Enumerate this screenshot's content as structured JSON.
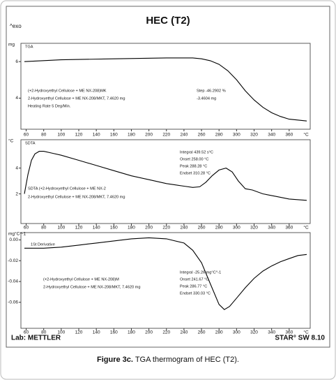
{
  "title": "HEC (T2)",
  "exo_label": "^exo",
  "lab": "Lab: METTLER",
  "software": "STAR° SW 8.10",
  "caption": {
    "label": "Figure 3c.",
    "text": "TGA thermogram of HEC (T2)."
  },
  "chart_data": [
    {
      "type": "line",
      "label": "TGA",
      "y_unit": "mg",
      "x_unit": "°C",
      "color": "#000000",
      "xlim": [
        54,
        384
      ],
      "xticks": [
        60,
        80,
        100,
        120,
        140,
        160,
        180,
        200,
        220,
        240,
        260,
        280,
        300,
        320,
        340,
        360
      ],
      "ylim": [
        2.3,
        7
      ],
      "yticks": [
        6,
        4
      ],
      "x": [
        58,
        100,
        160,
        220,
        250,
        260,
        270,
        280,
        290,
        300,
        310,
        320,
        330,
        340,
        350,
        360,
        380
      ],
      "values": [
        6.0,
        6.1,
        6.15,
        6.2,
        6.2,
        6.15,
        6.05,
        5.85,
        5.5,
        5.0,
        4.4,
        3.9,
        3.5,
        3.2,
        3.0,
        2.85,
        2.75
      ],
      "annotations": [
        "(+2-Hydroxyethyl Cellulose + ME NX-208)MK",
        "2-Hydroxyethyl Cellulose + ME NX-208/MKT, 7.4620 mg",
        "Heating Rate 5 Deg/Min.",
        "Step -46.2902 %",
        "-3.4604 mg"
      ]
    },
    {
      "type": "line",
      "label": "SDTA",
      "y_unit": "°C",
      "x_unit": "°C",
      "color": "#000000",
      "xlim": [
        54,
        384
      ],
      "xticks": [
        60,
        80,
        100,
        120,
        140,
        160,
        180,
        200,
        220,
        240,
        260,
        280,
        300,
        320,
        340,
        360
      ],
      "ylim": [
        -0.3,
        6.2
      ],
      "yticks": [
        4,
        2
      ],
      "x": [
        58,
        62,
        66,
        70,
        75,
        80,
        90,
        100,
        120,
        140,
        160,
        180,
        200,
        220,
        240,
        250,
        258,
        265,
        272,
        280,
        288,
        295,
        302,
        310,
        318,
        330,
        345,
        360,
        380
      ],
      "values": [
        2.0,
        3.5,
        4.6,
        5.1,
        5.3,
        5.3,
        5.15,
        5.0,
        4.6,
        4.2,
        3.8,
        3.4,
        3.1,
        2.8,
        2.6,
        2.5,
        2.55,
        2.9,
        3.4,
        3.85,
        4.0,
        3.7,
        3.0,
        2.4,
        2.3,
        2.0,
        1.8,
        1.6,
        1.5
      ],
      "annotations": [
        "Integral 439.52 s°C",
        "Onset 258.00 °C",
        "Peak 288.28 °C",
        "Endset 310.28 °C",
        "SDTA (+2-Hydroxyethyl Cellulose + ME NX-2",
        "2-Hydroxyethyl Cellulose + ME NX-208/MKT, 7.4620 mg"
      ]
    },
    {
      "type": "line",
      "label": "1St Derivative",
      "y_unit": "mg°C^-1",
      "x_unit": "°C",
      "color": "#000000",
      "xlim": [
        54,
        384
      ],
      "xticks": [
        60,
        80,
        100,
        120,
        140,
        160,
        180,
        200,
        220,
        240,
        260,
        280,
        300,
        320,
        340,
        360
      ],
      "ylim": [
        -0.085,
        0.007
      ],
      "yticks": [
        {
          "value": 0,
          "label": "0.00"
        },
        -0.02,
        -0.04,
        -0.06
      ],
      "x": [
        58,
        80,
        100,
        120,
        140,
        160,
        180,
        200,
        220,
        240,
        250,
        260,
        270,
        280,
        286,
        292,
        300,
        310,
        320,
        330,
        340,
        350,
        360,
        370,
        380
      ],
      "values": [
        -0.008,
        -0.008,
        -0.007,
        -0.005,
        -0.003,
        -0.001,
        0.001,
        0.002,
        0.001,
        -0.003,
        -0.01,
        -0.022,
        -0.042,
        -0.062,
        -0.067,
        -0.064,
        -0.056,
        -0.046,
        -0.037,
        -0.03,
        -0.025,
        -0.021,
        -0.018,
        -0.015,
        -0.014
      ],
      "annotations": [
        "Integral -25.26 mg°C^-1",
        "Onset 241.67 °C",
        "Peak 286.77 °C",
        "Endset 330.03 °C",
        "(+2-Hydroxyethyl Cellulose + ME NX-208)M",
        "2-Hydroxyethyl Cellulose + ME NX-208/MKT, 7.4620 mg"
      ]
    }
  ]
}
